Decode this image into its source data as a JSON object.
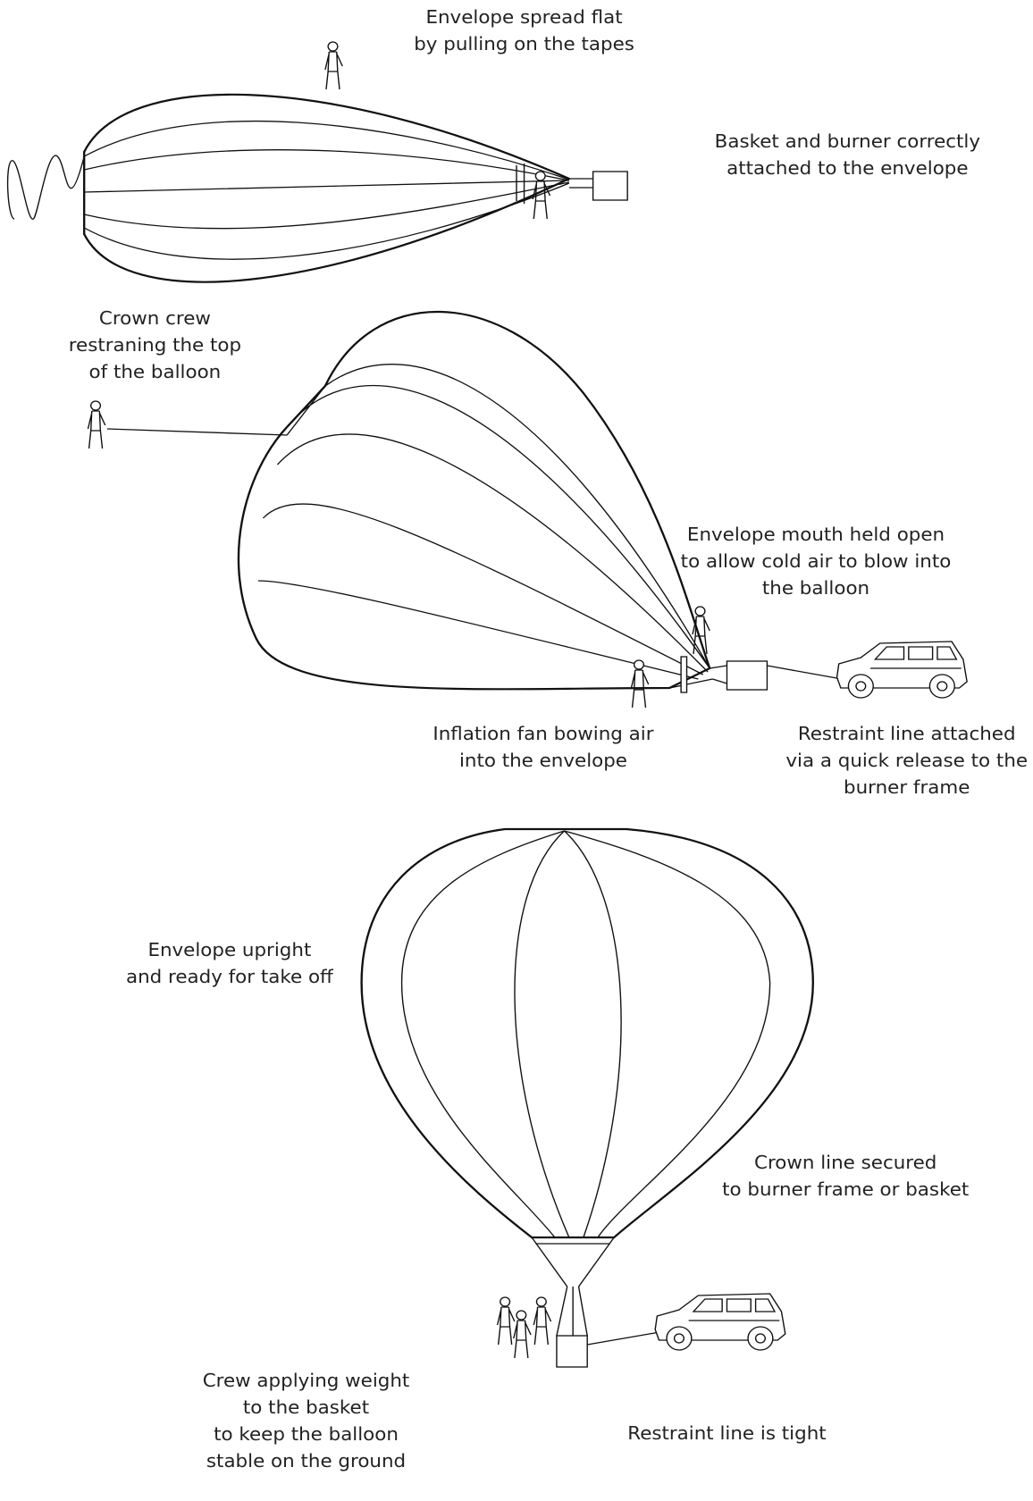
{
  "stages": [
    {
      "labels": [
        {
          "lines": [
            "Envelope spread flat",
            "by pulling on the tapes"
          ]
        },
        {
          "lines": [
            "Basket and burner correctly",
            "attached to the envelope"
          ]
        }
      ]
    },
    {
      "labels": [
        {
          "lines": [
            "Crown crew",
            "restraning the top",
            "of the balloon"
          ]
        },
        {
          "lines": [
            "Envelope mouth held open",
            "to allow cold air to blow into",
            "the balloon"
          ]
        },
        {
          "lines": [
            "Inflation fan bowing air",
            "into the envelope"
          ]
        },
        {
          "lines": [
            "Restraint line attached",
            "via a quick release to the",
            "burner frame"
          ]
        }
      ]
    },
    {
      "labels": [
        {
          "lines": [
            "Envelope upright",
            "and ready for take off"
          ]
        },
        {
          "lines": [
            "Crown line secured",
            "to burner frame or basket"
          ]
        },
        {
          "lines": [
            "Crew applying weight",
            "to the basket",
            "to keep the balloon",
            "stable on the ground"
          ]
        },
        {
          "lines": [
            "Restraint line is tight"
          ]
        }
      ]
    }
  ]
}
